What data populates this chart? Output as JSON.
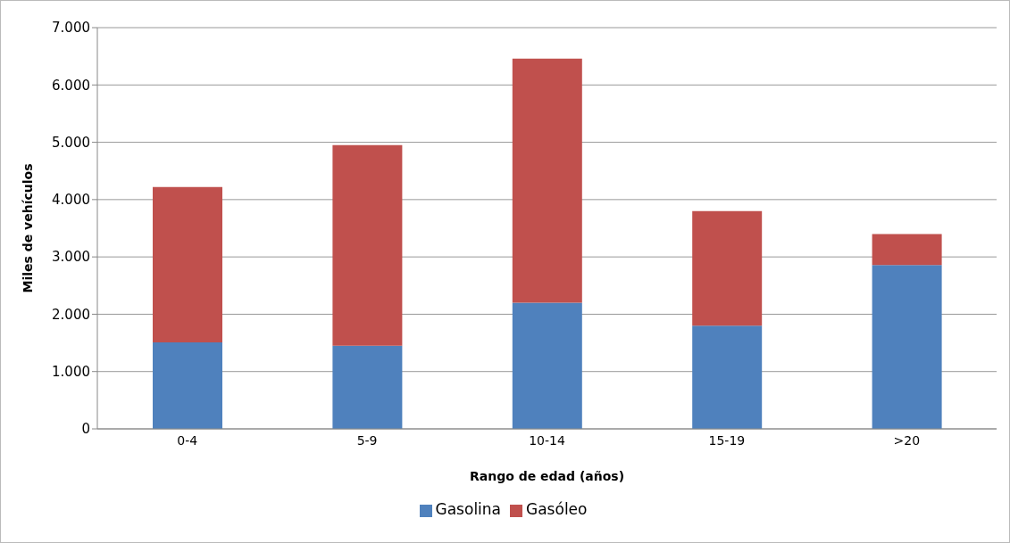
{
  "chart_data": {
    "type": "bar",
    "stacked": true,
    "xlabel": "Rango de edad (años)",
    "ylabel": "Miles de vehículos",
    "categories": [
      "0-4",
      "5-9",
      "10-14",
      "15-19",
      ">20"
    ],
    "series": [
      {
        "name": "Gasolina",
        "color": "#4f81bd",
        "values": [
          1510,
          1450,
          2200,
          1800,
          2860
        ]
      },
      {
        "name": "Gasóleo",
        "color": "#c0504d",
        "values": [
          2710,
          3500,
          4260,
          2000,
          540
        ]
      }
    ],
    "ylim": [
      0,
      7000
    ],
    "yticks": [
      {
        "value": 0,
        "label": "0"
      },
      {
        "value": 1000,
        "label": "1.000"
      },
      {
        "value": 2000,
        "label": "2.000"
      },
      {
        "value": 3000,
        "label": "3.000"
      },
      {
        "value": 4000,
        "label": "4.000"
      },
      {
        "value": 5000,
        "label": "5.000"
      },
      {
        "value": 6000,
        "label": "6.000"
      },
      {
        "value": 7000,
        "label": "7.000"
      }
    ],
    "grid": "y",
    "legend": "bottom"
  }
}
